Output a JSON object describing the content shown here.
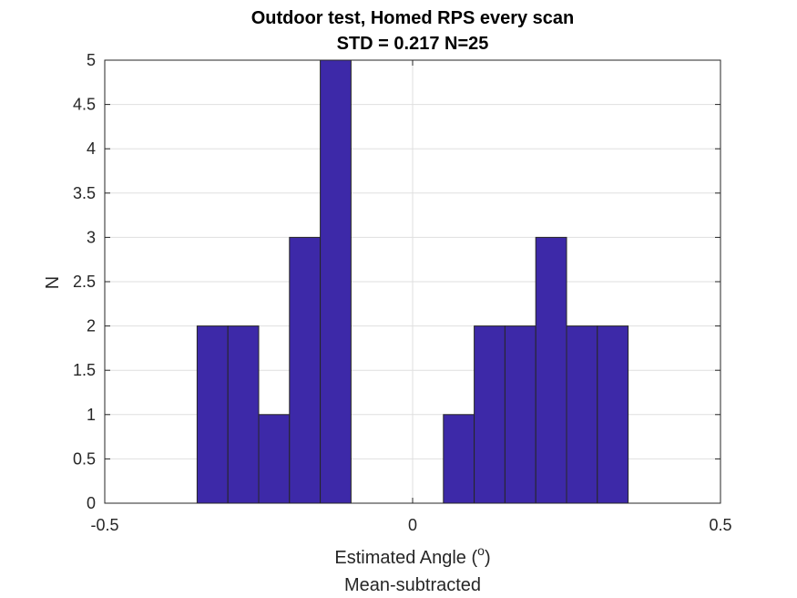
{
  "chart_data": {
    "type": "bar",
    "title": "Outdoor test, Homed RPS every scan",
    "subtitle": "STD = 0.217 N=25",
    "xlabel": "Estimated Angle (",
    "xlabel_sup": "o",
    "xlabel_suffix": ")",
    "xlabel_line2": "Mean-subtracted",
    "ylabel": "N",
    "xlim": [
      -0.5,
      0.5
    ],
    "ylim": [
      0,
      5
    ],
    "xticks": [
      -0.5,
      0,
      0.5
    ],
    "xtick_labels": [
      "-0.5",
      "0",
      "0.5"
    ],
    "yticks": [
      0,
      0.5,
      1,
      1.5,
      2,
      2.5,
      3,
      3.5,
      4,
      4.5,
      5
    ],
    "ytick_labels": [
      "0",
      "0.5",
      "1",
      "1.5",
      "2",
      "2.5",
      "3",
      "3.5",
      "4",
      "4.5",
      "5"
    ],
    "grid": true,
    "bin_edges": [
      -0.35,
      -0.3,
      -0.25,
      -0.2,
      -0.15,
      -0.1,
      -0.05,
      0,
      0.05,
      0.1,
      0.15,
      0.2,
      0.25,
      0.3,
      0.35
    ],
    "values": [
      2,
      2,
      1,
      3,
      5,
      0,
      0,
      0,
      1,
      2,
      2,
      3,
      2,
      2
    ],
    "bar_color": "#3d29a8",
    "edge_color": "#262626"
  }
}
